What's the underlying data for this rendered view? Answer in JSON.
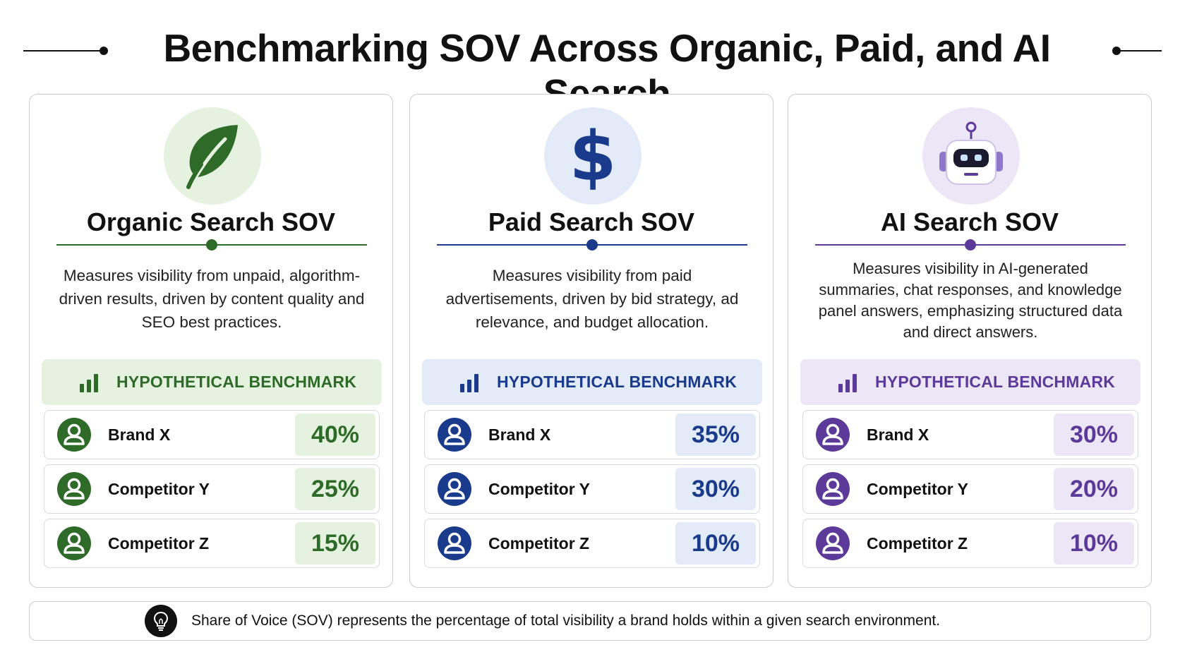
{
  "title": "Benchmarking SOV Across Organic, Paid, and AI Search",
  "cards": [
    {
      "title": "Organic Search SOV",
      "icon": "leaf-icon",
      "accent": "#2e6b28",
      "tint": "#e6f2e0",
      "description": "Measures visibility from unpaid, algorithm-driven results, driven by content quality and SEO best practices.",
      "benchmark_label": "HYPOTHETICAL BENCHMARK",
      "rows": [
        {
          "label": "Brand X",
          "value": "40%"
        },
        {
          "label": "Competitor Y",
          "value": "25%"
        },
        {
          "label": "Competitor Z",
          "value": "15%"
        }
      ]
    },
    {
      "title": "Paid Search SOV",
      "icon": "dollar-icon",
      "accent": "#1a3a8c",
      "tint": "#e4ebf8",
      "description": "Measures visibility from paid advertisements, driven by bid strategy, ad relevance, and budget allocation.",
      "benchmark_label": "HYPOTHETICAL BENCHMARK",
      "rows": [
        {
          "label": "Brand X",
          "value": "35%"
        },
        {
          "label": "Competitor Y",
          "value": "30%"
        },
        {
          "label": "Competitor Z",
          "value": "10%"
        }
      ]
    },
    {
      "title": "AI Search SOV",
      "icon": "robot-icon",
      "accent": "#5c3a99",
      "tint": "#ede6f6",
      "description": "Measures visibility in AI-generated summaries, chat responses, and knowledge panel answers, emphasizing structured data and direct answers.",
      "benchmark_label": "HYPOTHETICAL BENCHMARK",
      "rows": [
        {
          "label": "Brand X",
          "value": "30%"
        },
        {
          "label": "Competitor Y",
          "value": "20%"
        },
        {
          "label": "Competitor Z",
          "value": "10%"
        }
      ]
    }
  ],
  "footnote": {
    "icon": "lightbulb-icon",
    "text": "Share of Voice (SOV) represents the percentage of total visibility a brand holds within a given search environment."
  }
}
